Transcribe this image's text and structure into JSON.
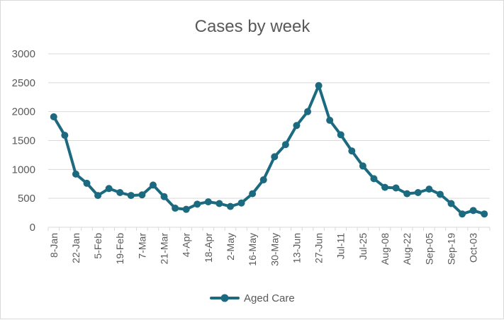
{
  "chart_data": {
    "type": "line",
    "title": "Cases by week",
    "xlabel": "",
    "ylabel": "",
    "ylim": [
      0,
      3000
    ],
    "y_ticks": [
      0,
      500,
      1000,
      1500,
      2000,
      2500,
      3000
    ],
    "grid": true,
    "legend_position": "bottom",
    "x_tick_labels": [
      "8-Jan",
      "22-Jan",
      "5-Feb",
      "19-Feb",
      "7-Mar",
      "21-Mar",
      "4-Apr",
      "18-Apr",
      "2-May",
      "16-May",
      "30-May",
      "13-Jun",
      "27-Jun",
      "Jul-11",
      "Jul-25",
      "Aug-08",
      "Aug-22",
      "Sep-05",
      "Sep-19",
      "Oct-03"
    ],
    "series": [
      {
        "name": "Aged Care",
        "color": "#1b6a80",
        "values": [
          1910,
          1590,
          920,
          760,
          550,
          670,
          600,
          550,
          560,
          730,
          530,
          330,
          310,
          400,
          440,
          410,
          360,
          420,
          580,
          820,
          1220,
          1430,
          1760,
          2000,
          2450,
          1850,
          1600,
          1320,
          1060,
          840,
          690,
          680,
          580,
          600,
          660,
          570,
          410,
          230,
          290,
          230
        ]
      }
    ]
  }
}
